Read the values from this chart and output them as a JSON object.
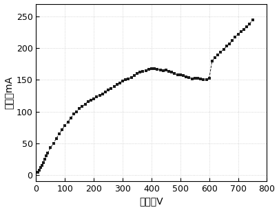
{
  "x": [
    5,
    10,
    15,
    20,
    25,
    30,
    35,
    40,
    50,
    60,
    70,
    80,
    90,
    100,
    110,
    120,
    130,
    140,
    150,
    160,
    170,
    180,
    190,
    200,
    210,
    220,
    230,
    240,
    250,
    260,
    270,
    280,
    290,
    300,
    310,
    320,
    330,
    340,
    350,
    360,
    370,
    380,
    390,
    400,
    410,
    420,
    430,
    440,
    450,
    460,
    470,
    480,
    490,
    500,
    510,
    520,
    530,
    540,
    550,
    560,
    570,
    580,
    590,
    600,
    610,
    620,
    630,
    640,
    650,
    660,
    670,
    680,
    690,
    700,
    710,
    720,
    730,
    740,
    750
  ],
  "y": [
    5,
    8,
    12,
    15,
    20,
    25,
    30,
    35,
    43,
    50,
    58,
    65,
    72,
    78,
    84,
    90,
    96,
    100,
    105,
    108,
    112,
    116,
    118,
    120,
    123,
    126,
    128,
    131,
    134,
    137,
    140,
    143,
    145,
    148,
    150,
    152,
    154,
    157,
    160,
    162,
    163,
    165,
    167,
    168,
    168,
    167,
    166,
    165,
    166,
    163,
    162,
    160,
    158,
    158,
    157,
    155,
    154,
    152,
    153,
    153,
    152,
    151,
    150,
    153,
    180,
    185,
    190,
    194,
    198,
    203,
    207,
    212,
    218,
    222,
    226,
    230,
    234,
    238,
    245
  ],
  "marker": "s",
  "marker_size": 3.5,
  "line_style": "--",
  "color": "#1a1a1a",
  "xlabel": "电压／V",
  "ylabel": "电流／mA",
  "xlim": [
    0,
    800
  ],
  "ylim": [
    -10,
    270
  ],
  "xticks": [
    0,
    100,
    200,
    300,
    400,
    500,
    600,
    700,
    800
  ],
  "yticks": [
    0,
    50,
    100,
    150,
    200,
    250
  ],
  "background_color": "#ffffff",
  "grid_color": "#c8c8c8",
  "axis_color": "#000000",
  "tick_fontsize": 9,
  "label_fontsize": 10
}
